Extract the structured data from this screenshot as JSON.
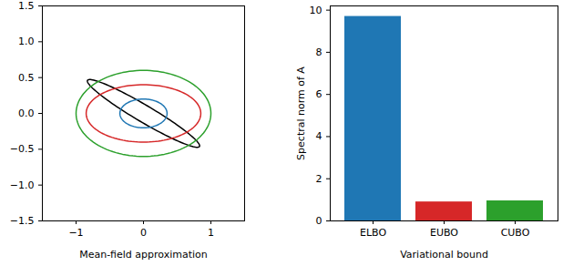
{
  "chart_data": [
    {
      "type": "ellipse",
      "xlabel": "Mean-field approximation",
      "xlim": [
        -1.5,
        1.5
      ],
      "ylim": [
        -1.5,
        1.5
      ],
      "xticks": [
        -1,
        0,
        1
      ],
      "yticks": [
        {
          "value": -1.5,
          "label": "−1.5"
        },
        {
          "value": -1.0,
          "label": "−1.0"
        },
        {
          "value": -0.5,
          "label": "−0.5"
        },
        {
          "value": 0,
          "label": "0.0"
        },
        {
          "value": 0.5,
          "label": "0.5"
        },
        {
          "value": 1.0,
          "label": "1.0"
        },
        {
          "value": 1.5,
          "label": "1.5"
        }
      ],
      "ellipses": [
        {
          "color": "#000000",
          "cx": 0,
          "cy": 0,
          "rx": 0.95,
          "ry": 0.12,
          "angle": -29
        },
        {
          "color": "#2ca02c",
          "cx": 0,
          "cy": 0,
          "rx": 1.0,
          "ry": 0.6,
          "angle": 0
        },
        {
          "color": "#d62728",
          "cx": 0,
          "cy": 0,
          "rx": 0.85,
          "ry": 0.4,
          "angle": 0
        },
        {
          "color": "#1f77b4",
          "cx": 0,
          "cy": 0,
          "rx": 0.35,
          "ry": 0.2,
          "angle": 0
        }
      ]
    },
    {
      "type": "bar",
      "xlabel": "Variational bound",
      "ylabel": "Spectral norm of A",
      "categories": [
        "ELBO",
        "EUBO",
        "CUBO"
      ],
      "values": [
        9.7,
        0.9,
        0.95
      ],
      "colors": [
        "#1f77b4",
        "#d62728",
        "#2ca02c"
      ],
      "ylim": [
        0,
        10.2
      ],
      "yticks": [
        0,
        2,
        4,
        6,
        8,
        10
      ]
    }
  ]
}
